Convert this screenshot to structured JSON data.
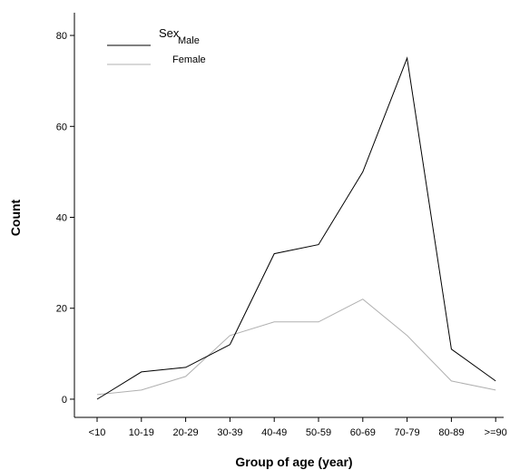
{
  "chart_data": {
    "type": "line",
    "xlabel": "Group of age (year)",
    "ylabel": "Count",
    "categories": [
      "<10",
      "10-19",
      "20-29",
      "30-39",
      "40-49",
      "50-59",
      "60-69",
      "70-79",
      "80-89",
      ">=90"
    ],
    "ylim": [
      -4,
      85
    ],
    "yticks": [
      0,
      20,
      40,
      60,
      80
    ],
    "grid": false,
    "legend": {
      "title": "Sex",
      "placement": "top-left"
    },
    "series": [
      {
        "name": "Male",
        "color": "#000000",
        "values": [
          0,
          6,
          7,
          12,
          32,
          34,
          50,
          75,
          11,
          4
        ]
      },
      {
        "name": "Female",
        "color": "#b0b0b0",
        "values": [
          1,
          2,
          5,
          14,
          17,
          17,
          22,
          14,
          4,
          2
        ]
      }
    ]
  }
}
